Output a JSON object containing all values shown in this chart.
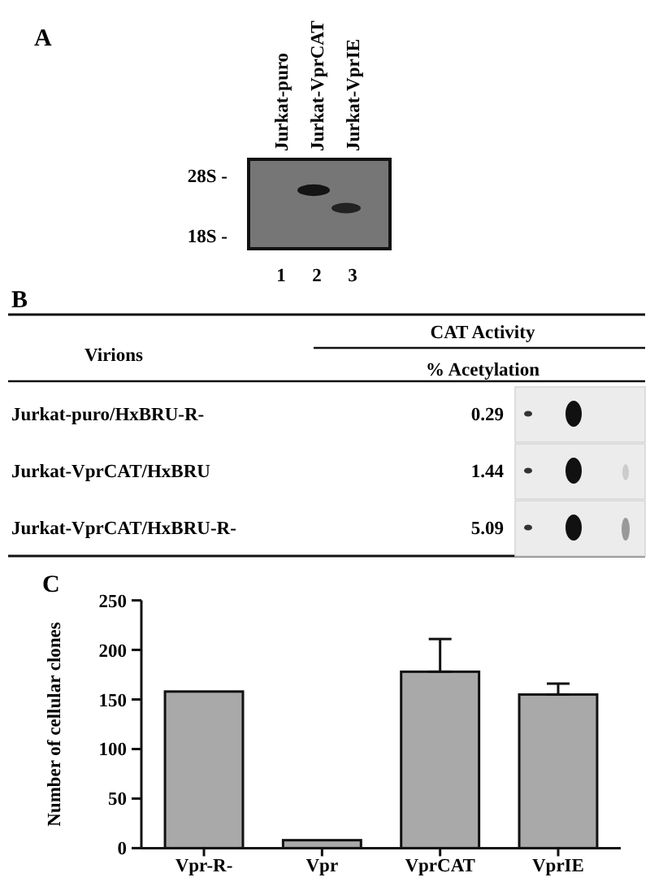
{
  "chart_data": [
    {
      "type": "other",
      "title": "A",
      "categories": [
        "Jurkat-puro",
        "Jurkat-VprCAT",
        "Jurkat-VprIE"
      ],
      "annotations": [
        "28S -",
        "18S -",
        "1",
        "2",
        "3"
      ]
    },
    {
      "type": "other",
      "title": "B",
      "categories": [
        "Jurkat-puro/HxBRU-R-",
        "Jurkat-VprCAT/HxBRU",
        "Jurkat-VprCAT/HxBRU-R-"
      ],
      "values": [
        0.29,
        1.44,
        5.09
      ],
      "data_labels": true,
      "annotations": [
        "Virions",
        "CAT Activity",
        "% Acetylation"
      ]
    },
    {
      "type": "bar",
      "title": "C",
      "ylabel": "Number of cellular clones",
      "categories": [
        "Vpr-R-",
        "Vpr",
        "VprCAT",
        "VprIE"
      ],
      "values": [
        158,
        8,
        178,
        155
      ],
      "errors": [
        null,
        null,
        [
          178,
          211
        ],
        [
          155,
          166
        ]
      ],
      "color": "#a9a9a9",
      "ylim": [
        0,
        250
      ],
      "yticks": [
        0,
        50,
        100,
        150,
        200,
        250
      ]
    }
  ]
}
